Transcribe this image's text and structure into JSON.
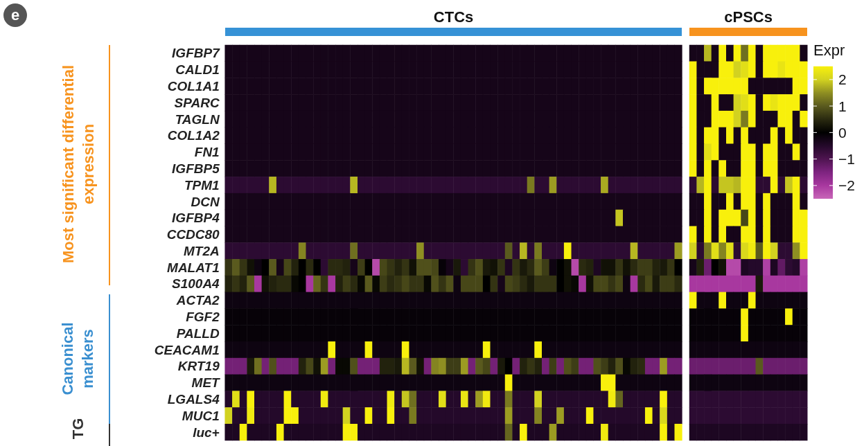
{
  "chart_data": {
    "type": "heatmap",
    "title": "CTCs",
    "subtitle": "cPSCs",
    "clabel": "Expr",
    "annotations": [
      "e",
      "Most significant differential expression",
      "Canonical markers",
      "TG"
    ],
    "tick_labels": "y",
    "clim": [
      -2.5,
      2.5
    ],
    "cticks": [
      {
        "value": 2,
        "label": "2"
      },
      {
        "value": 1,
        "label": "1"
      },
      {
        "value": 0,
        "label": "0"
      },
      {
        "value": -1,
        "label": "−1"
      },
      {
        "value": -2,
        "label": "−2"
      }
    ],
    "categories": [
      null,
      null,
      null,
      null,
      null,
      null,
      null,
      null,
      null,
      null,
      null,
      null,
      null,
      null,
      null,
      null,
      null,
      null,
      null,
      null,
      null,
      null,
      null,
      null,
      null,
      null,
      null,
      null,
      null,
      null,
      null,
      null,
      null,
      null,
      null,
      null,
      null,
      null,
      null,
      null,
      null,
      null,
      null,
      null,
      null,
      null,
      null,
      null,
      null,
      null,
      null,
      null,
      null,
      null,
      null,
      null,
      null,
      null,
      null,
      null,
      null,
      null,
      null,
      null,
      null,
      null,
      null,
      null,
      null,
      null,
      null,
      null,
      null,
      null,
      null,
      null,
      null,
      null,
      null
    ],
    "y_categories": [
      "IGFBP7",
      "CALD1",
      "COL1A1",
      "SPARC",
      "TAGLN",
      "COL1A2",
      "FN1",
      "IGFBP5",
      "TPM1",
      "DCN",
      "IGFBP4",
      "CCDC80",
      "MT2A",
      "MALAT1",
      "S100A4",
      "ACTA2",
      "FGF2",
      "PALLD",
      "CEACAM1",
      "KRT19",
      "MET",
      "LGALS4",
      "MUC1",
      "luc+"
    ],
    "cells": [
      [
        -0.3,
        -0.3,
        -0.3,
        -0.3,
        -0.3,
        -0.3,
        -0.3,
        -0.3,
        -0.3,
        -0.3,
        -0.3,
        -0.3,
        -0.3,
        -0.3,
        -0.3,
        -0.3,
        -0.3,
        -0.3,
        -0.3,
        -0.3,
        -0.3,
        -0.3,
        -0.3,
        -0.3,
        -0.3,
        -0.3,
        -0.3,
        -0.3,
        -0.3,
        -0.3,
        -0.3,
        -0.3,
        -0.3,
        -0.3,
        -0.3,
        -0.3,
        -0.3,
        -0.3,
        -0.3,
        -0.3,
        -0.3,
        -0.3,
        -0.3,
        -0.3,
        -0.3,
        -0.3,
        -0.3,
        -0.3,
        -0.3,
        -0.3,
        -0.3,
        -0.3,
        -0.3,
        -0.3,
        -0.3,
        -0.3,
        -0.3,
        -0.3,
        -0.3,
        -0.3,
        -0.3,
        -0.3,
        null,
        -0.3,
        -0.3,
        1.8,
        -0.3,
        2.5,
        -0.3,
        2.5,
        1.2,
        2.5,
        -0.3,
        2.5,
        2.5,
        2.5,
        2.5,
        2.5,
        -0.3
      ],
      [
        -0.3,
        -0.3,
        -0.3,
        -0.3,
        -0.3,
        -0.3,
        -0.3,
        -0.3,
        -0.3,
        -0.3,
        -0.3,
        -0.3,
        -0.3,
        -0.3,
        -0.3,
        -0.3,
        -0.3,
        -0.3,
        -0.3,
        -0.3,
        -0.3,
        -0.3,
        -0.3,
        -0.3,
        -0.3,
        -0.3,
        -0.3,
        -0.3,
        -0.3,
        -0.3,
        -0.3,
        -0.3,
        -0.3,
        -0.3,
        -0.3,
        -0.3,
        -0.3,
        -0.3,
        -0.3,
        -0.3,
        -0.3,
        -0.3,
        -0.3,
        -0.3,
        -0.3,
        -0.3,
        -0.3,
        -0.3,
        -0.3,
        -0.3,
        -0.3,
        -0.3,
        -0.3,
        -0.3,
        -0.3,
        -0.3,
        -0.3,
        -0.3,
        -0.3,
        -0.3,
        -0.3,
        -0.3,
        null,
        2.5,
        -0.3,
        -0.3,
        -0.3,
        2.5,
        2.5,
        2.0,
        2.2,
        2.5,
        -0.3,
        2.5,
        2.5,
        2.3,
        2.5,
        2.5,
        2.5
      ],
      [
        -0.3,
        -0.3,
        -0.3,
        -0.3,
        -0.3,
        -0.3,
        -0.3,
        -0.3,
        -0.3,
        -0.3,
        -0.3,
        -0.3,
        -0.3,
        -0.3,
        -0.3,
        -0.3,
        -0.3,
        -0.3,
        -0.3,
        -0.3,
        -0.3,
        -0.3,
        -0.3,
        -0.3,
        -0.3,
        -0.3,
        -0.3,
        -0.3,
        -0.3,
        -0.3,
        -0.3,
        -0.3,
        -0.3,
        -0.3,
        -0.3,
        -0.3,
        -0.3,
        -0.3,
        -0.3,
        -0.3,
        -0.3,
        -0.3,
        -0.3,
        -0.3,
        -0.3,
        -0.3,
        -0.3,
        -0.3,
        -0.3,
        -0.3,
        -0.3,
        -0.3,
        -0.3,
        -0.3,
        -0.3,
        -0.3,
        -0.3,
        -0.3,
        -0.3,
        -0.3,
        -0.3,
        -0.3,
        null,
        2.5,
        -0.3,
        2.5,
        2.5,
        2.5,
        2.5,
        2.5,
        2.5,
        -0.3,
        -0.3,
        -0.3,
        -0.3,
        -0.3,
        -0.3,
        2.5,
        2.5
      ],
      [
        -0.3,
        -0.3,
        -0.3,
        -0.3,
        -0.3,
        -0.3,
        -0.3,
        -0.3,
        -0.3,
        -0.3,
        -0.3,
        -0.3,
        -0.3,
        -0.3,
        -0.3,
        -0.3,
        -0.3,
        -0.3,
        -0.3,
        -0.3,
        -0.3,
        -0.3,
        -0.3,
        -0.3,
        -0.3,
        -0.3,
        -0.3,
        -0.3,
        -0.3,
        -0.3,
        -0.3,
        -0.3,
        -0.3,
        -0.3,
        -0.3,
        -0.3,
        -0.3,
        -0.3,
        -0.3,
        -0.3,
        -0.3,
        -0.3,
        -0.3,
        -0.3,
        -0.3,
        -0.3,
        -0.3,
        -0.3,
        -0.3,
        -0.3,
        -0.3,
        -0.3,
        -0.3,
        -0.3,
        -0.3,
        -0.3,
        -0.3,
        -0.3,
        -0.3,
        -0.3,
        -0.3,
        -0.3,
        null,
        2.5,
        -0.3,
        -0.3,
        2.5,
        -0.3,
        -0.3,
        2.0,
        2.2,
        2.5,
        -0.3,
        2.5,
        2.3,
        2.5,
        2.5,
        2.5,
        -0.3
      ],
      [
        -0.3,
        -0.3,
        -0.3,
        -0.3,
        -0.3,
        -0.3,
        -0.3,
        -0.3,
        -0.3,
        -0.3,
        -0.3,
        -0.3,
        -0.3,
        -0.3,
        -0.3,
        -0.3,
        -0.3,
        -0.3,
        -0.3,
        -0.3,
        -0.3,
        -0.3,
        -0.3,
        -0.3,
        -0.3,
        -0.3,
        -0.3,
        -0.3,
        -0.3,
        -0.3,
        -0.3,
        -0.3,
        -0.3,
        -0.3,
        -0.3,
        -0.3,
        -0.3,
        -0.3,
        -0.3,
        -0.3,
        -0.3,
        -0.3,
        -0.3,
        -0.3,
        -0.3,
        -0.3,
        -0.3,
        -0.3,
        -0.3,
        -0.3,
        -0.3,
        -0.3,
        -0.3,
        -0.3,
        -0.3,
        -0.3,
        -0.3,
        -0.3,
        -0.3,
        -0.3,
        -0.3,
        -0.3,
        null,
        2.5,
        -0.3,
        -0.3,
        2.5,
        2.5,
        2.5,
        2.0,
        1.3,
        2.5,
        -0.3,
        -0.3,
        -0.3,
        2.5,
        2.5,
        -0.3,
        2.5
      ],
      [
        -0.3,
        -0.3,
        -0.3,
        -0.3,
        -0.3,
        -0.3,
        -0.3,
        -0.3,
        -0.3,
        -0.3,
        -0.3,
        -0.3,
        -0.3,
        -0.3,
        -0.3,
        -0.3,
        -0.3,
        -0.3,
        -0.3,
        -0.3,
        -0.3,
        -0.3,
        -0.3,
        -0.3,
        -0.3,
        -0.3,
        -0.3,
        -0.3,
        -0.3,
        -0.3,
        -0.3,
        -0.3,
        -0.3,
        -0.3,
        -0.3,
        -0.3,
        -0.3,
        -0.3,
        -0.3,
        -0.3,
        -0.3,
        -0.3,
        -0.3,
        -0.3,
        -0.3,
        -0.3,
        -0.3,
        -0.3,
        -0.3,
        -0.3,
        -0.3,
        -0.3,
        -0.3,
        -0.3,
        -0.3,
        -0.3,
        -0.3,
        -0.3,
        -0.3,
        -0.3,
        -0.3,
        -0.3,
        null,
        2.5,
        -0.3,
        2.5,
        2.5,
        -0.3,
        2.5,
        -0.3,
        2.5,
        -0.3,
        -0.3,
        -0.3,
        2.5,
        -0.3,
        2.5,
        -0.3,
        -0.3
      ],
      [
        -0.3,
        -0.3,
        -0.3,
        -0.3,
        -0.3,
        -0.3,
        -0.3,
        -0.3,
        -0.3,
        -0.3,
        -0.3,
        -0.3,
        -0.3,
        -0.3,
        -0.3,
        -0.3,
        -0.3,
        -0.3,
        -0.3,
        -0.3,
        -0.3,
        -0.3,
        -0.3,
        -0.3,
        -0.3,
        -0.3,
        -0.3,
        -0.3,
        -0.3,
        -0.3,
        -0.3,
        -0.3,
        -0.3,
        -0.3,
        -0.3,
        -0.3,
        -0.3,
        -0.3,
        -0.3,
        -0.3,
        -0.3,
        -0.3,
        -0.3,
        -0.3,
        -0.3,
        -0.3,
        -0.3,
        -0.3,
        -0.3,
        -0.3,
        -0.3,
        -0.3,
        -0.3,
        -0.3,
        -0.3,
        -0.3,
        -0.3,
        -0.3,
        -0.3,
        -0.3,
        -0.3,
        -0.3,
        null,
        2.5,
        -0.3,
        2.2,
        2.5,
        -0.3,
        -0.3,
        -0.3,
        2.5,
        2.5,
        -0.3,
        2.5,
        2.5,
        -0.3,
        -0.3,
        2.5,
        -0.3
      ],
      [
        -0.3,
        -0.3,
        -0.3,
        -0.3,
        -0.3,
        -0.3,
        -0.3,
        -0.3,
        -0.3,
        -0.3,
        -0.3,
        -0.3,
        -0.3,
        -0.3,
        -0.3,
        -0.3,
        -0.3,
        -0.3,
        -0.3,
        -0.3,
        -0.3,
        -0.3,
        -0.3,
        -0.3,
        -0.3,
        -0.3,
        -0.3,
        -0.3,
        -0.3,
        -0.3,
        -0.3,
        -0.3,
        -0.3,
        -0.3,
        -0.3,
        -0.3,
        -0.3,
        -0.3,
        -0.3,
        -0.3,
        -0.3,
        -0.3,
        -0.3,
        -0.3,
        -0.3,
        -0.3,
        -0.3,
        -0.3,
        -0.3,
        -0.3,
        -0.3,
        -0.3,
        -0.3,
        -0.3,
        -0.3,
        -0.3,
        -0.3,
        -0.3,
        -0.3,
        -0.3,
        -0.3,
        -0.3,
        null,
        2.5,
        -0.3,
        2.5,
        -0.3,
        2.5,
        -0.3,
        -0.3,
        2.5,
        2.5,
        -0.3,
        2.5,
        2.5,
        -0.3,
        -0.3,
        -0.3,
        -0.3
      ],
      [
        -0.6,
        -0.6,
        -0.6,
        -0.6,
        -0.6,
        -0.6,
        1.8,
        -0.6,
        -0.6,
        -0.6,
        -0.6,
        -0.6,
        -0.6,
        -0.6,
        -0.6,
        -0.6,
        -0.6,
        1.8,
        -0.6,
        -0.6,
        -0.6,
        -0.6,
        -0.6,
        -0.6,
        -0.6,
        -0.6,
        -0.6,
        -0.6,
        -0.6,
        -0.6,
        -0.6,
        -0.6,
        -0.6,
        -0.6,
        -0.6,
        -0.6,
        -0.6,
        -0.6,
        -0.6,
        -0.6,
        -0.6,
        1.3,
        -0.6,
        -0.6,
        1.6,
        -0.6,
        -0.6,
        -0.6,
        -0.6,
        -0.6,
        -0.6,
        1.7,
        -0.6,
        -0.6,
        -0.6,
        -0.6,
        -0.6,
        -0.6,
        -0.6,
        -0.6,
        -0.6,
        -0.6,
        null,
        -0.6,
        1.8,
        2.5,
        -0.6,
        1.9,
        1.9,
        1.8,
        2.5,
        2.5,
        -0.6,
        -0.6,
        2.5,
        -0.6,
        1.9,
        2.5,
        -0.6
      ],
      [
        -0.3,
        -0.3,
        -0.3,
        -0.3,
        -0.3,
        -0.3,
        -0.3,
        -0.3,
        -0.3,
        -0.3,
        -0.3,
        -0.3,
        -0.3,
        -0.3,
        -0.3,
        -0.3,
        -0.3,
        -0.3,
        -0.3,
        -0.3,
        -0.3,
        -0.3,
        -0.3,
        -0.3,
        -0.3,
        -0.3,
        -0.3,
        -0.3,
        -0.3,
        -0.3,
        -0.3,
        -0.3,
        -0.3,
        -0.3,
        -0.3,
        -0.3,
        -0.3,
        -0.3,
        -0.3,
        -0.3,
        -0.3,
        -0.3,
        -0.3,
        -0.3,
        -0.3,
        -0.3,
        -0.3,
        -0.3,
        -0.3,
        -0.3,
        -0.3,
        -0.3,
        -0.3,
        -0.3,
        -0.3,
        -0.3,
        -0.3,
        -0.3,
        -0.3,
        -0.3,
        -0.3,
        -0.3,
        null,
        -0.3,
        -0.3,
        2.5,
        -0.3,
        -0.3,
        2.5,
        -0.3,
        2.5,
        2.5,
        -0.3,
        2.5,
        -0.3,
        -0.3,
        -0.3,
        2.5,
        -0.3
      ],
      [
        -0.3,
        -0.3,
        -0.3,
        -0.3,
        -0.3,
        -0.3,
        -0.3,
        -0.3,
        -0.3,
        -0.3,
        -0.3,
        -0.3,
        -0.3,
        -0.3,
        -0.3,
        -0.3,
        -0.3,
        -0.3,
        -0.3,
        -0.3,
        -0.3,
        -0.3,
        -0.3,
        -0.3,
        -0.3,
        -0.3,
        -0.3,
        -0.3,
        -0.3,
        -0.3,
        -0.3,
        -0.3,
        -0.3,
        -0.3,
        -0.3,
        -0.3,
        -0.3,
        -0.3,
        -0.3,
        -0.3,
        -0.3,
        -0.3,
        -0.3,
        -0.3,
        -0.3,
        -0.3,
        -0.3,
        -0.3,
        -0.3,
        -0.3,
        -0.3,
        -0.3,
        -0.3,
        1.9,
        -0.3,
        -0.3,
        -0.3,
        -0.3,
        -0.3,
        -0.3,
        -0.3,
        -0.3,
        null,
        -0.3,
        -0.3,
        2.5,
        -0.3,
        2.5,
        2.5,
        2.5,
        0.8,
        2.5,
        -0.3,
        2.5,
        -0.3,
        -0.3,
        -0.3,
        2.5,
        2.5
      ],
      [
        -0.3,
        -0.3,
        -0.3,
        -0.3,
        -0.3,
        -0.3,
        -0.3,
        -0.3,
        -0.3,
        -0.3,
        -0.3,
        -0.3,
        -0.3,
        -0.3,
        -0.3,
        -0.3,
        -0.3,
        -0.3,
        -0.3,
        -0.3,
        -0.3,
        -0.3,
        -0.3,
        -0.3,
        -0.3,
        -0.3,
        -0.3,
        -0.3,
        -0.3,
        -0.3,
        -0.3,
        -0.3,
        -0.3,
        -0.3,
        -0.3,
        -0.3,
        -0.3,
        -0.3,
        -0.3,
        -0.3,
        -0.3,
        -0.3,
        -0.3,
        -0.3,
        -0.3,
        -0.3,
        -0.3,
        -0.3,
        -0.3,
        -0.3,
        -0.3,
        -0.3,
        -0.3,
        -0.3,
        -0.3,
        -0.3,
        -0.3,
        -0.3,
        -0.3,
        -0.3,
        -0.3,
        -0.3,
        null,
        2.5,
        -0.3,
        2.5,
        -0.3,
        2.5,
        -0.3,
        -0.3,
        2.5,
        2.5,
        -0.3,
        2.5,
        -0.3,
        -0.3,
        -0.3,
        2.5,
        2.5
      ],
      [
        -0.6,
        -0.6,
        -0.6,
        -0.6,
        -0.6,
        -0.6,
        -0.6,
        -0.6,
        -0.6,
        -0.6,
        1.4,
        -0.6,
        -0.6,
        -0.6,
        -0.6,
        -0.6,
        -0.6,
        1.2,
        -0.6,
        -0.6,
        -0.6,
        -0.6,
        -0.6,
        -0.6,
        -0.6,
        -0.6,
        1.5,
        -0.6,
        -0.6,
        -0.6,
        -0.6,
        -0.6,
        -0.6,
        -0.6,
        -0.6,
        -0.6,
        -0.6,
        -0.6,
        1.0,
        -0.6,
        1.8,
        -0.6,
        1.3,
        -0.6,
        -0.6,
        -0.6,
        2.5,
        -0.6,
        -0.6,
        -0.6,
        -0.6,
        -0.6,
        -0.6,
        -0.6,
        -0.6,
        1.8,
        -0.6,
        -0.6,
        -0.6,
        -0.6,
        -0.6,
        1.6,
        null,
        2.0,
        -0.6,
        1.3,
        2.2,
        1.4,
        2.2,
        -0.6,
        2.1,
        2.4,
        1.0,
        2.5,
        2.0,
        -0.6,
        -0.6,
        1.5,
        2.5
      ],
      [
        0.6,
        1.0,
        0.6,
        0.2,
        -0.2,
        0,
        1.0,
        -0.3,
        0.8,
        0.4,
        0,
        0.5,
        0,
        -0.6,
        0.5,
        0.5,
        0.4,
        -0.3,
        0.7,
        0,
        -2.2,
        0.8,
        0.6,
        0.4,
        0.6,
        0.2,
        0.9,
        0.9,
        0.8,
        -0.1,
        -0.3,
        0.3,
        -0.6,
        0.6,
        0.9,
        0.3,
        0.2,
        0.6,
        -0.4,
        0.6,
        0.3,
        0.5,
        1.0,
        0.7,
        -0.2,
        0,
        0.2,
        -2.2,
        0.5,
        0.4,
        -0.4,
        0.2,
        0.2,
        0.6,
        0.2,
        0.5,
        0.7,
        0.7,
        0.4,
        0.3,
        0.6,
        0,
        null,
        -0.3,
        0.4,
        -1.3,
        0,
        0.2,
        -2.2,
        -2.2,
        -0.4,
        -0.5,
        -0.5,
        -2.1,
        -0.4,
        -1.2,
        -0.6,
        -0.5,
        -2.1
      ],
      [
        0.4,
        0.6,
        0.4,
        1.0,
        -2.0,
        0.2,
        0.4,
        0.5,
        0.5,
        0.1,
        0,
        -2.0,
        1.1,
        0.6,
        -2.0,
        0.4,
        0.7,
        0.5,
        0.1,
        1.0,
        0.1,
        0.7,
        0.5,
        0.6,
        0.8,
        0.6,
        0.6,
        0.1,
        0.9,
        0.6,
        0.9,
        -0.2,
        0.8,
        0.8,
        0.8,
        0,
        0.6,
        -0.3,
        0.8,
        0.7,
        0.5,
        0.3,
        0.6,
        0.6,
        0.6,
        0,
        0.2,
        0.1,
        -2.0,
        0.2,
        0.8,
        0.8,
        0.6,
        0.8,
        -0.2,
        -2.0,
        0.5,
        0.8,
        0.3,
        0.7,
        0.7,
        0.5,
        null,
        -2.0,
        -2.0,
        -2.0,
        -2.0,
        -2.0,
        -2.0,
        -2.0,
        -2.0,
        -2.0,
        0.3,
        -2.0,
        -2.0,
        -2.0,
        -2.0,
        -2.0,
        -2.0
      ],
      [
        -0.2,
        -0.2,
        -0.2,
        -0.2,
        -0.2,
        -0.2,
        -0.2,
        -0.2,
        -0.2,
        -0.2,
        -0.2,
        -0.2,
        -0.2,
        -0.2,
        -0.2,
        -0.2,
        -0.2,
        -0.2,
        -0.2,
        -0.2,
        -0.2,
        -0.2,
        -0.2,
        -0.2,
        -0.2,
        -0.2,
        -0.2,
        -0.2,
        -0.2,
        -0.2,
        -0.2,
        -0.2,
        -0.2,
        -0.2,
        -0.2,
        -0.2,
        -0.2,
        -0.2,
        -0.2,
        -0.2,
        -0.2,
        -0.2,
        -0.2,
        -0.2,
        -0.2,
        -0.2,
        -0.2,
        -0.2,
        -0.2,
        -0.2,
        -0.2,
        -0.2,
        -0.2,
        -0.2,
        -0.2,
        -0.2,
        -0.2,
        -0.2,
        -0.2,
        -0.2,
        -0.2,
        -0.2,
        null,
        2.5,
        -0.2,
        -0.2,
        -0.2,
        2.5,
        -0.2,
        -0.2,
        -0.2,
        2.5,
        -0.2,
        -0.2,
        -0.2,
        -0.2,
        -0.2,
        -0.2,
        -0.2
      ],
      [
        -0.1,
        -0.1,
        -0.1,
        -0.1,
        -0.1,
        -0.1,
        -0.1,
        -0.1,
        -0.1,
        -0.1,
        -0.1,
        -0.1,
        -0.1,
        -0.1,
        -0.1,
        -0.1,
        -0.1,
        -0.1,
        -0.1,
        -0.1,
        -0.1,
        -0.1,
        -0.1,
        -0.1,
        -0.1,
        -0.1,
        -0.1,
        -0.1,
        -0.1,
        -0.1,
        -0.1,
        -0.1,
        -0.1,
        -0.1,
        -0.1,
        -0.1,
        -0.1,
        -0.1,
        -0.1,
        -0.1,
        -0.1,
        -0.1,
        -0.1,
        -0.1,
        -0.1,
        -0.1,
        -0.1,
        -0.1,
        -0.1,
        -0.1,
        -0.1,
        -0.1,
        -0.1,
        -0.1,
        -0.1,
        -0.1,
        -0.1,
        -0.1,
        -0.1,
        -0.1,
        -0.1,
        -0.1,
        null,
        -0.1,
        -0.1,
        -0.1,
        -0.1,
        -0.1,
        -0.1,
        -0.1,
        2.5,
        -0.1,
        -0.1,
        -0.1,
        -0.1,
        -0.1,
        2.5,
        -0.1,
        -0.1
      ],
      [
        -0.1,
        -0.1,
        -0.1,
        -0.1,
        -0.1,
        -0.1,
        -0.1,
        -0.1,
        -0.1,
        -0.1,
        -0.1,
        -0.1,
        -0.1,
        -0.1,
        -0.1,
        -0.1,
        -0.1,
        -0.1,
        -0.1,
        -0.1,
        -0.1,
        -0.1,
        -0.1,
        -0.1,
        -0.1,
        -0.1,
        -0.1,
        -0.1,
        -0.1,
        -0.1,
        -0.1,
        -0.1,
        -0.1,
        -0.1,
        -0.1,
        -0.1,
        -0.1,
        -0.1,
        -0.1,
        -0.1,
        -0.1,
        -0.1,
        -0.1,
        -0.1,
        -0.1,
        -0.1,
        -0.1,
        -0.1,
        -0.1,
        -0.1,
        -0.1,
        -0.1,
        -0.1,
        -0.1,
        -0.1,
        -0.1,
        -0.1,
        -0.1,
        -0.1,
        -0.1,
        -0.1,
        -0.1,
        null,
        -0.1,
        -0.1,
        -0.1,
        -0.1,
        -0.1,
        -0.1,
        -0.1,
        2.5,
        -0.1,
        -0.1,
        -0.1,
        -0.1,
        -0.1,
        -0.1,
        -0.1,
        -0.1
      ],
      [
        -0.2,
        -0.2,
        -0.2,
        -0.2,
        -0.2,
        -0.2,
        -0.2,
        -0.2,
        -0.2,
        -0.2,
        -0.2,
        -0.2,
        -0.2,
        -0.2,
        2.5,
        -0.2,
        -0.2,
        -0.2,
        -0.2,
        2.5,
        -0.2,
        -0.2,
        -0.2,
        -0.2,
        2.5,
        -0.2,
        -0.2,
        -0.2,
        -0.2,
        -0.2,
        -0.2,
        -0.2,
        -0.2,
        -0.2,
        -0.2,
        2.5,
        -0.2,
        -0.2,
        -0.2,
        -0.2,
        -0.2,
        -0.2,
        2.5,
        -0.2,
        -0.2,
        -0.2,
        -0.2,
        -0.2,
        -0.2,
        -0.2,
        -0.2,
        -0.2,
        -0.2,
        -0.2,
        -0.2,
        -0.2,
        -0.2,
        -0.2,
        -0.2,
        -0.2,
        -0.2,
        -0.2,
        null,
        -0.2,
        -0.2,
        -0.2,
        -0.2,
        -0.2,
        -0.2,
        -0.2,
        -0.2,
        -0.2,
        -0.2,
        -0.2,
        -0.2,
        -0.2,
        -0.2,
        -0.2,
        -0.2
      ],
      [
        -1.4,
        -1.4,
        -1.4,
        0.3,
        1.2,
        -1.4,
        0.9,
        -1.4,
        -1.4,
        -1.4,
        0.4,
        0.8,
        0.2,
        1.6,
        -1.4,
        0.1,
        0.1,
        0.9,
        -1.4,
        -1.4,
        -1.4,
        0.4,
        0.4,
        0.3,
        1.8,
        1.0,
        0.2,
        -1.4,
        1.4,
        1.5,
        0.7,
        0.7,
        1.6,
        -1.4,
        1.0,
        0.8,
        -1.4,
        0.3,
        0,
        -1.4,
        0.4,
        0.6,
        0.4,
        -1.4,
        0.7,
        -1.4,
        0.9,
        0.7,
        -1.4,
        -1.4,
        0.9,
        0.7,
        0.4,
        0.9,
        0.1,
        0.4,
        0.5,
        -1.4,
        -1.4,
        1.6,
        -1.4,
        -1.4,
        null,
        -1.3,
        -1.3,
        -1.3,
        -1.3,
        -1.3,
        -1.3,
        -1.3,
        -1.3,
        -1.3,
        1.0,
        -1.3,
        -1.3,
        -1.3,
        -1.3,
        -1.3,
        -1.3
      ],
      [
        -0.2,
        -0.2,
        -0.2,
        -0.2,
        -0.2,
        -0.2,
        -0.2,
        -0.2,
        -0.2,
        -0.2,
        -0.2,
        -0.2,
        -0.2,
        -0.2,
        -0.2,
        -0.2,
        -0.2,
        -0.2,
        -0.2,
        -0.2,
        -0.2,
        -0.2,
        -0.2,
        -0.2,
        -0.2,
        -0.2,
        -0.2,
        -0.2,
        -0.2,
        -0.2,
        -0.2,
        -0.2,
        -0.2,
        -0.2,
        -0.2,
        -0.2,
        -0.2,
        -0.2,
        2.5,
        -0.2,
        -0.2,
        -0.2,
        -0.2,
        -0.2,
        -0.2,
        -0.2,
        -0.2,
        -0.2,
        -0.2,
        -0.2,
        -0.2,
        2.5,
        2.5,
        -0.2,
        -0.2,
        -0.2,
        -0.2,
        -0.2,
        -0.2,
        -0.2,
        -0.2,
        -0.2,
        null,
        -0.2,
        -0.2,
        -0.2,
        -0.2,
        -0.2,
        -0.2,
        -0.2,
        -0.2,
        -0.2,
        -0.2,
        -0.2,
        -0.2,
        -0.2,
        -0.2,
        -0.2,
        -0.2
      ],
      [
        -0.5,
        2.2,
        -0.5,
        2.5,
        -0.5,
        -0.5,
        -0.5,
        -0.5,
        2.5,
        -0.5,
        -0.5,
        -0.5,
        -0.5,
        2.4,
        -0.5,
        -0.5,
        -0.5,
        -0.5,
        -0.5,
        -0.5,
        -0.5,
        -0.5,
        2.4,
        -0.5,
        1.9,
        1.2,
        -0.5,
        -0.5,
        -0.5,
        2.2,
        -0.5,
        -0.5,
        2.3,
        -0.5,
        1.6,
        2.4,
        -0.5,
        -0.5,
        1.3,
        -0.5,
        -0.5,
        -0.5,
        2.0,
        -0.5,
        -0.5,
        -0.5,
        -0.5,
        -0.5,
        -0.5,
        -0.5,
        -0.5,
        -0.5,
        2.4,
        1.1,
        -0.5,
        -0.5,
        -0.5,
        -0.5,
        -0.5,
        2.5,
        -0.5,
        -0.5,
        null,
        -0.6,
        -0.6,
        -0.6,
        -0.6,
        -0.6,
        -0.6,
        -0.6,
        -0.6,
        -0.6,
        -0.6,
        -0.6,
        -0.6,
        -0.6,
        -0.6,
        -0.6,
        -0.6
      ],
      [
        2.0,
        -0.5,
        -0.5,
        2.4,
        -0.5,
        -0.5,
        -0.5,
        -0.5,
        2.5,
        2.5,
        -0.5,
        -0.5,
        -0.5,
        -0.5,
        -0.5,
        -0.5,
        2.0,
        -0.5,
        -0.5,
        2.5,
        -0.5,
        -0.5,
        2.5,
        -0.5,
        -0.5,
        1.3,
        -0.5,
        -0.5,
        -0.5,
        -0.5,
        -0.5,
        -0.5,
        -0.5,
        -0.5,
        -0.5,
        -0.5,
        -0.5,
        -0.5,
        1.6,
        -0.5,
        -0.5,
        -0.5,
        1.4,
        -0.5,
        -0.5,
        1.6,
        -0.5,
        -0.5,
        -0.5,
        2.5,
        -0.5,
        -0.5,
        -0.5,
        -0.5,
        -0.5,
        -0.5,
        -0.5,
        2.5,
        -0.5,
        2.1,
        -0.5,
        -0.5,
        null,
        -0.6,
        -0.6,
        -0.6,
        -0.6,
        -0.6,
        -0.6,
        -0.6,
        -0.6,
        -0.6,
        -0.6,
        -0.6,
        -0.6,
        -0.6,
        -0.6,
        -0.6,
        -0.6
      ],
      [
        -0.4,
        -0.4,
        2.5,
        -0.4,
        -0.4,
        -0.4,
        -0.4,
        2.5,
        -0.4,
        -0.4,
        -0.4,
        -0.4,
        -0.4,
        -0.4,
        -0.4,
        -0.4,
        2.5,
        2.5,
        -0.4,
        -0.4,
        -0.4,
        -0.4,
        -0.4,
        -0.4,
        -0.4,
        -0.4,
        -0.4,
        -0.4,
        -0.4,
        -0.4,
        -0.4,
        -0.4,
        -0.4,
        -0.4,
        -0.4,
        -0.4,
        -0.4,
        -0.4,
        1.1,
        -0.4,
        2.5,
        -0.4,
        -0.4,
        -0.4,
        1.6,
        -0.4,
        -0.4,
        -0.4,
        -0.4,
        -0.4,
        -0.4,
        2.4,
        -0.4,
        -0.4,
        -0.4,
        -0.4,
        -0.4,
        -0.4,
        -0.4,
        2.5,
        -0.4,
        2.5,
        null,
        -0.4,
        -0.4,
        -0.4,
        -0.4,
        -0.4,
        -0.4,
        -0.4,
        -0.4,
        -0.4,
        -0.4,
        -0.4,
        -0.4,
        -0.4,
        -0.4,
        -0.4,
        -0.4
      ]
    ]
  }
}
